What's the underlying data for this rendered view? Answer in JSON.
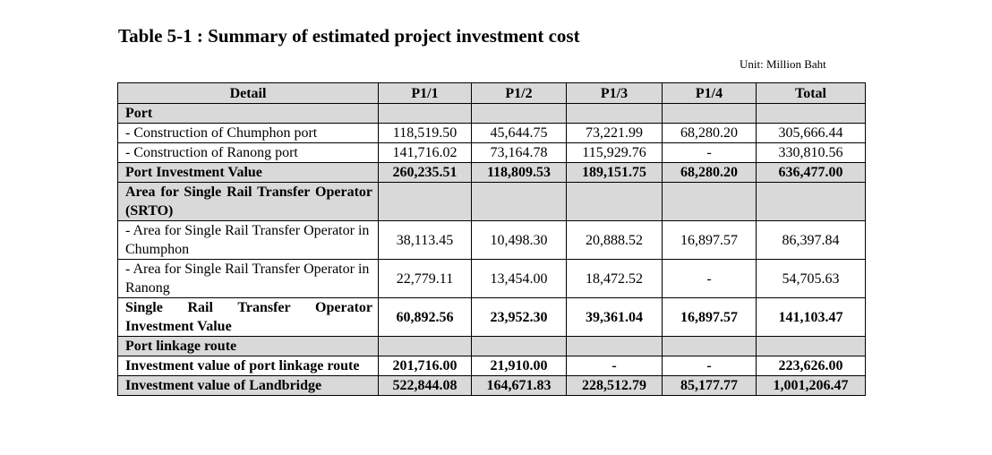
{
  "title": "Table 5-1 : Summary of estimated project investment cost",
  "unit": "Unit: Million Baht",
  "headers": [
    "Detail",
    "P1/1",
    "P1/2",
    "P1/3",
    "P1/4",
    "Total"
  ],
  "rows": {
    "port_header": "Port",
    "chumphon": {
      "detail": "- Construction of Chumphon port",
      "values": [
        "118,519.50",
        "45,644.75",
        "73,221.99",
        "68,280.20",
        "305,666.44"
      ]
    },
    "ranong": {
      "detail": "- Construction of Ranong port",
      "values": [
        "141,716.02",
        "73,164.78",
        "115,929.76",
        "-",
        "330,810.56"
      ]
    },
    "port_total": {
      "detail": "Port Investment Value",
      "values": [
        "260,235.51",
        "118,809.53",
        "189,151.75",
        "68,280.20",
        "636,477.00"
      ]
    },
    "srto_header": "Area for Single Rail Transfer Operator (SRTO)",
    "srto_chumphon": {
      "detail": "- Area for Single Rail Transfer Operator in Chumphon",
      "values": [
        "38,113.45",
        "10,498.30",
        "20,888.52",
        "16,897.57",
        "86,397.84"
      ]
    },
    "srto_ranong": {
      "detail": "- Area for Single Rail Transfer Operator in Ranong",
      "values": [
        "22,779.11",
        "13,454.00",
        "18,472.52",
        "-",
        "54,705.63"
      ]
    },
    "srto_total": {
      "detail": "Single Rail Transfer Operator Investment Value",
      "values": [
        "60,892.56",
        "23,952.30",
        "39,361.04",
        "16,897.57",
        "141,103.47"
      ]
    },
    "linkage_header": "Port linkage route",
    "linkage_total": {
      "detail": "Investment value of port linkage route",
      "values": [
        "201,716.00",
        "21,910.00",
        "-",
        "-",
        "223,626.00"
      ]
    },
    "landbridge_total": {
      "detail": "Investment value of Landbridge",
      "values": [
        "522,844.08",
        "164,671.83",
        "228,512.79",
        "85,177.77",
        "1,001,206.47"
      ]
    }
  },
  "colors": {
    "header_shade": "#d9d9d9",
    "border": "#000000"
  }
}
